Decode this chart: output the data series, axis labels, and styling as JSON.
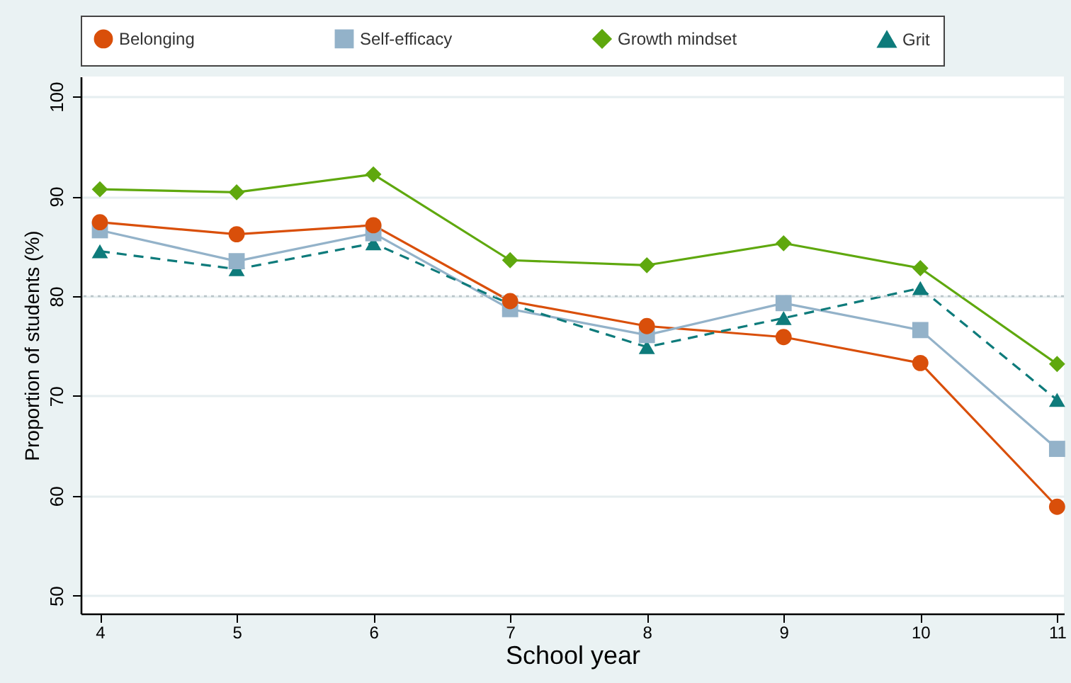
{
  "chart_data": {
    "type": "line",
    "xlabel": "School year",
    "ylabel": "Proportion of students (%)",
    "x": [
      4,
      5,
      6,
      7,
      8,
      9,
      10,
      11
    ],
    "series": [
      {
        "name": "Belonging",
        "color": "#d94f0a",
        "marker": "circle",
        "line_style": "solid",
        "values": [
          87.4,
          86.2,
          87.1,
          79.5,
          77.0,
          75.9,
          73.3,
          58.9
        ]
      },
      {
        "name": "Self-efficacy",
        "color": "#93b2c9",
        "marker": "square",
        "line_style": "solid",
        "values": [
          86.6,
          83.5,
          86.3,
          78.7,
          76.1,
          79.3,
          76.6,
          64.7
        ]
      },
      {
        "name": "Growth mindset",
        "color": "#5fa80e",
        "marker": "diamond",
        "line_style": "solid",
        "values": [
          90.7,
          90.4,
          92.2,
          83.6,
          83.1,
          85.3,
          82.8,
          73.2
        ]
      },
      {
        "name": "Grit",
        "color": "#0e7b7b",
        "marker": "triangle",
        "line_style": "dashed",
        "values": [
          84.5,
          82.7,
          85.3,
          79.2,
          74.9,
          77.8,
          80.8,
          69.6
        ]
      }
    ],
    "xlim": [
      3.86,
      11.05
    ],
    "xticks": [
      4,
      5,
      6,
      7,
      8,
      9,
      10,
      11
    ],
    "ylim": [
      48.2,
      102
    ],
    "yticks": [
      50,
      60,
      70,
      80,
      90,
      100
    ],
    "ref_lines": [
      {
        "axis": "y",
        "value": 80,
        "color": "#b8c4c8",
        "line_style": "dotted"
      }
    ],
    "grid": "y",
    "legend": "top"
  }
}
